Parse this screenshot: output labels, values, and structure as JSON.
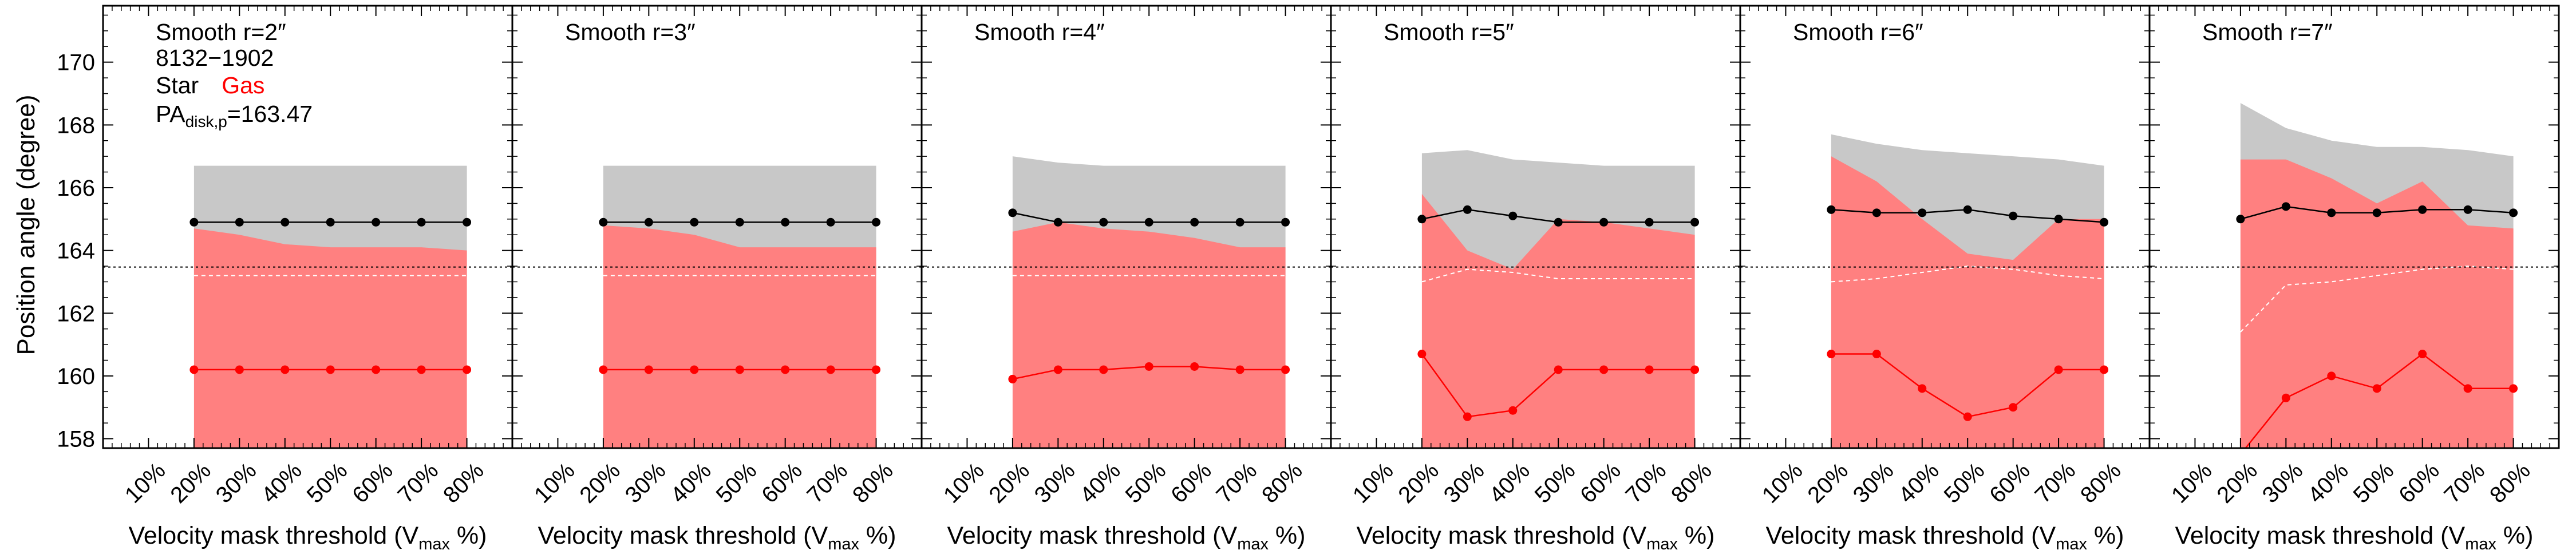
{
  "figure": {
    "ylabel": "Position angle (degree)",
    "xlabel_prefix": "Velocity mask threshold (V",
    "xlabel_sub": "max",
    "xlabel_suffix": " %)",
    "info": {
      "galaxy": "8132−1902",
      "star_label": "Star",
      "gas_label": "Gas",
      "pa_prefix": "PA",
      "pa_sub": "disk,p",
      "pa_value": "=163.47"
    },
    "colors": {
      "gas": "#ff0000",
      "gas_band": "#ff8080",
      "star": "#000000",
      "star_band": "#c8c8c8",
      "dashed": "#ffffff"
    }
  },
  "chart_data": [
    {
      "type": "line",
      "title": "Smooth r=2″",
      "categories": [
        "10%",
        "20%",
        "30%",
        "40%",
        "50%",
        "60%",
        "70%",
        "80%"
      ],
      "x": [
        10,
        20,
        30,
        40,
        50,
        60,
        70,
        80
      ],
      "xlim": [
        0,
        90
      ],
      "ylim": [
        157.7,
        171.8
      ],
      "yticks": [
        158,
        160,
        162,
        164,
        166,
        168,
        170
      ],
      "reference_line": 163.47,
      "series": [
        {
          "name": "Star",
          "x": [
            20,
            30,
            40,
            50,
            60,
            70,
            80
          ],
          "values": [
            164.9,
            164.9,
            164.9,
            164.9,
            164.9,
            164.9,
            164.9
          ],
          "upper": [
            166.7,
            166.7,
            166.7,
            166.7,
            166.7,
            166.7,
            166.7
          ],
          "lower": [
            163.2,
            163.2,
            163.2,
            163.2,
            163.2,
            163.2,
            163.2
          ]
        },
        {
          "name": "Gas",
          "x": [
            20,
            30,
            40,
            50,
            60,
            70,
            80
          ],
          "values": [
            160.2,
            160.2,
            160.2,
            160.2,
            160.2,
            160.2,
            160.2
          ],
          "upper": [
            164.7,
            164.5,
            164.2,
            164.1,
            164.1,
            164.1,
            164.0
          ],
          "lower": [
            157.7,
            157.7,
            157.7,
            157.7,
            157.7,
            157.7,
            157.7
          ]
        }
      ]
    },
    {
      "type": "line",
      "title": "Smooth r=3″",
      "categories": [
        "10%",
        "20%",
        "30%",
        "40%",
        "50%",
        "60%",
        "70%",
        "80%"
      ],
      "x": [
        10,
        20,
        30,
        40,
        50,
        60,
        70,
        80
      ],
      "xlim": [
        0,
        90
      ],
      "ylim": [
        157.7,
        171.8
      ],
      "yticks": [
        158,
        160,
        162,
        164,
        166,
        168,
        170
      ],
      "reference_line": 163.47,
      "series": [
        {
          "name": "Star",
          "x": [
            20,
            30,
            40,
            50,
            60,
            70,
            80
          ],
          "values": [
            164.9,
            164.9,
            164.9,
            164.9,
            164.9,
            164.9,
            164.9
          ],
          "upper": [
            166.7,
            166.7,
            166.7,
            166.7,
            166.7,
            166.7,
            166.7
          ],
          "lower": [
            163.2,
            163.2,
            163.2,
            163.2,
            163.2,
            163.2,
            163.2
          ]
        },
        {
          "name": "Gas",
          "x": [
            20,
            30,
            40,
            50,
            60,
            70,
            80
          ],
          "values": [
            160.2,
            160.2,
            160.2,
            160.2,
            160.2,
            160.2,
            160.2
          ],
          "upper": [
            164.8,
            164.7,
            164.5,
            164.1,
            164.1,
            164.1,
            164.1
          ],
          "lower": [
            157.7,
            157.7,
            157.7,
            157.7,
            157.7,
            157.7,
            157.7
          ]
        }
      ]
    },
    {
      "type": "line",
      "title": "Smooth r=4″",
      "categories": [
        "10%",
        "20%",
        "30%",
        "40%",
        "50%",
        "60%",
        "70%",
        "80%"
      ],
      "x": [
        10,
        20,
        30,
        40,
        50,
        60,
        70,
        80
      ],
      "xlim": [
        0,
        90
      ],
      "ylim": [
        157.7,
        171.8
      ],
      "yticks": [
        158,
        160,
        162,
        164,
        166,
        168,
        170
      ],
      "reference_line": 163.47,
      "series": [
        {
          "name": "Star",
          "x": [
            20,
            30,
            40,
            50,
            60,
            70,
            80
          ],
          "values": [
            165.2,
            164.9,
            164.9,
            164.9,
            164.9,
            164.9,
            164.9
          ],
          "upper": [
            167.0,
            166.8,
            166.7,
            166.7,
            166.7,
            166.7,
            166.7
          ],
          "lower": [
            163.2,
            163.2,
            163.2,
            163.2,
            163.2,
            163.2,
            163.2
          ]
        },
        {
          "name": "Gas",
          "x": [
            20,
            30,
            40,
            50,
            60,
            70,
            80
          ],
          "values": [
            159.9,
            160.2,
            160.2,
            160.3,
            160.3,
            160.2,
            160.2
          ],
          "upper": [
            164.6,
            164.9,
            164.7,
            164.6,
            164.4,
            164.1,
            164.1
          ],
          "lower": [
            157.7,
            157.7,
            157.7,
            157.7,
            157.7,
            157.7,
            157.7
          ]
        }
      ]
    },
    {
      "type": "line",
      "title": "Smooth r=5″",
      "categories": [
        "10%",
        "20%",
        "30%",
        "40%",
        "50%",
        "60%",
        "70%",
        "80%"
      ],
      "x": [
        10,
        20,
        30,
        40,
        50,
        60,
        70,
        80
      ],
      "xlim": [
        0,
        90
      ],
      "ylim": [
        157.7,
        171.8
      ],
      "yticks": [
        158,
        160,
        162,
        164,
        166,
        168,
        170
      ],
      "reference_line": 163.47,
      "series": [
        {
          "name": "Star",
          "x": [
            20,
            30,
            40,
            50,
            60,
            70,
            80
          ],
          "values": [
            165.0,
            165.3,
            165.1,
            164.9,
            164.9,
            164.9,
            164.9
          ],
          "upper": [
            167.1,
            167.2,
            166.9,
            166.8,
            166.7,
            166.7,
            166.7
          ],
          "lower": [
            163.0,
            163.4,
            163.3,
            163.1,
            163.1,
            163.1,
            163.1
          ]
        },
        {
          "name": "Gas",
          "x": [
            20,
            30,
            40,
            50,
            60,
            70,
            80
          ],
          "values": [
            160.7,
            158.7,
            158.9,
            160.2,
            160.2,
            160.2,
            160.2
          ],
          "upper": [
            165.8,
            164.0,
            163.4,
            165.0,
            164.9,
            164.7,
            164.5
          ],
          "lower": [
            157.7,
            157.7,
            157.7,
            157.7,
            157.7,
            157.7,
            157.7
          ]
        }
      ]
    },
    {
      "type": "line",
      "title": "Smooth r=6″",
      "categories": [
        "10%",
        "20%",
        "30%",
        "40%",
        "50%",
        "60%",
        "70%",
        "80%"
      ],
      "x": [
        10,
        20,
        30,
        40,
        50,
        60,
        70,
        80
      ],
      "xlim": [
        0,
        90
      ],
      "ylim": [
        157.7,
        171.8
      ],
      "yticks": [
        158,
        160,
        162,
        164,
        166,
        168,
        170
      ],
      "reference_line": 163.47,
      "series": [
        {
          "name": "Star",
          "x": [
            20,
            30,
            40,
            50,
            60,
            70,
            80
          ],
          "values": [
            165.3,
            165.2,
            165.2,
            165.3,
            165.1,
            165.0,
            164.9
          ],
          "upper": [
            167.7,
            167.4,
            167.2,
            167.1,
            167.0,
            166.9,
            166.7
          ],
          "lower": [
            163.0,
            163.1,
            163.3,
            163.5,
            163.4,
            163.2,
            163.1
          ]
        },
        {
          "name": "Gas",
          "x": [
            20,
            30,
            40,
            50,
            60,
            70,
            80
          ],
          "values": [
            160.7,
            160.7,
            159.6,
            158.7,
            159.0,
            160.2,
            160.2
          ],
          "upper": [
            167.0,
            166.2,
            165.0,
            163.9,
            163.7,
            165.0,
            165.0
          ],
          "lower": [
            157.7,
            157.7,
            157.7,
            157.7,
            157.7,
            157.7,
            157.7
          ]
        }
      ]
    },
    {
      "type": "line",
      "title": "Smooth r=7″",
      "categories": [
        "10%",
        "20%",
        "30%",
        "40%",
        "50%",
        "60%",
        "70%",
        "80%"
      ],
      "x": [
        10,
        20,
        30,
        40,
        50,
        60,
        70,
        80
      ],
      "xlim": [
        0,
        90
      ],
      "ylim": [
        157.7,
        171.8
      ],
      "yticks": [
        158,
        160,
        162,
        164,
        166,
        168,
        170
      ],
      "reference_line": 163.47,
      "series": [
        {
          "name": "Star",
          "x": [
            20,
            30,
            40,
            50,
            60,
            70,
            80
          ],
          "values": [
            165.0,
            165.4,
            165.2,
            165.2,
            165.3,
            165.3,
            165.2
          ],
          "upper": [
            168.7,
            167.9,
            167.5,
            167.3,
            167.3,
            167.2,
            167.0
          ],
          "lower": [
            161.4,
            162.9,
            163.0,
            163.2,
            163.4,
            163.5,
            163.4
          ]
        },
        {
          "name": "Gas",
          "x": [
            20,
            30,
            40,
            50,
            60,
            70,
            80
          ],
          "values": [
            157.5,
            159.3,
            160.0,
            159.6,
            160.7,
            159.6,
            159.6
          ],
          "upper": [
            166.9,
            166.9,
            166.3,
            165.5,
            166.2,
            164.8,
            164.7
          ],
          "lower": [
            157.7,
            157.7,
            157.7,
            157.7,
            157.7,
            157.7,
            157.7
          ]
        }
      ]
    }
  ]
}
